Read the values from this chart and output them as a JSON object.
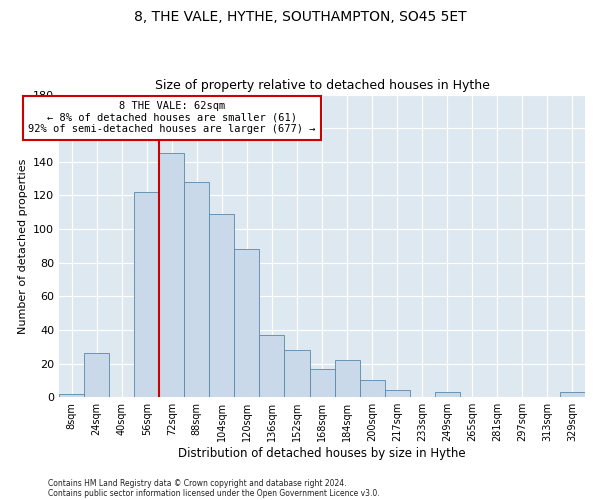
{
  "title": "8, THE VALE, HYTHE, SOUTHAMPTON, SO45 5ET",
  "subtitle": "Size of property relative to detached houses in Hythe",
  "xlabel": "Distribution of detached houses by size in Hythe",
  "ylabel": "Number of detached properties",
  "bar_labels": [
    "8sqm",
    "24sqm",
    "40sqm",
    "56sqm",
    "72sqm",
    "88sqm",
    "104sqm",
    "120sqm",
    "136sqm",
    "152sqm",
    "168sqm",
    "184sqm",
    "200sqm",
    "217sqm",
    "233sqm",
    "249sqm",
    "265sqm",
    "281sqm",
    "297sqm",
    "313sqm",
    "329sqm"
  ],
  "bar_values": [
    2,
    26,
    0,
    122,
    145,
    128,
    109,
    88,
    37,
    28,
    17,
    22,
    10,
    4,
    0,
    3,
    0,
    0,
    0,
    0,
    3
  ],
  "bar_color": "#c9d9e9",
  "bar_edge_color": "#5588aa",
  "vline_color": "#cc0000",
  "annotation_title": "8 THE VALE: 62sqm",
  "annotation_line1": "← 8% of detached houses are smaller (61)",
  "annotation_line2": "92% of semi-detached houses are larger (677) →",
  "annotation_box_color": "#ffffff",
  "annotation_box_edge": "#cc0000",
  "footnote1": "Contains HM Land Registry data © Crown copyright and database right 2024.",
  "footnote2": "Contains public sector information licensed under the Open Government Licence v3.0.",
  "ylim": [
    0,
    180
  ],
  "yticks": [
    0,
    20,
    40,
    60,
    80,
    100,
    120,
    140,
    160,
    180
  ],
  "background_color": "#dde8f0",
  "fig_bg_color": "#ffffff"
}
